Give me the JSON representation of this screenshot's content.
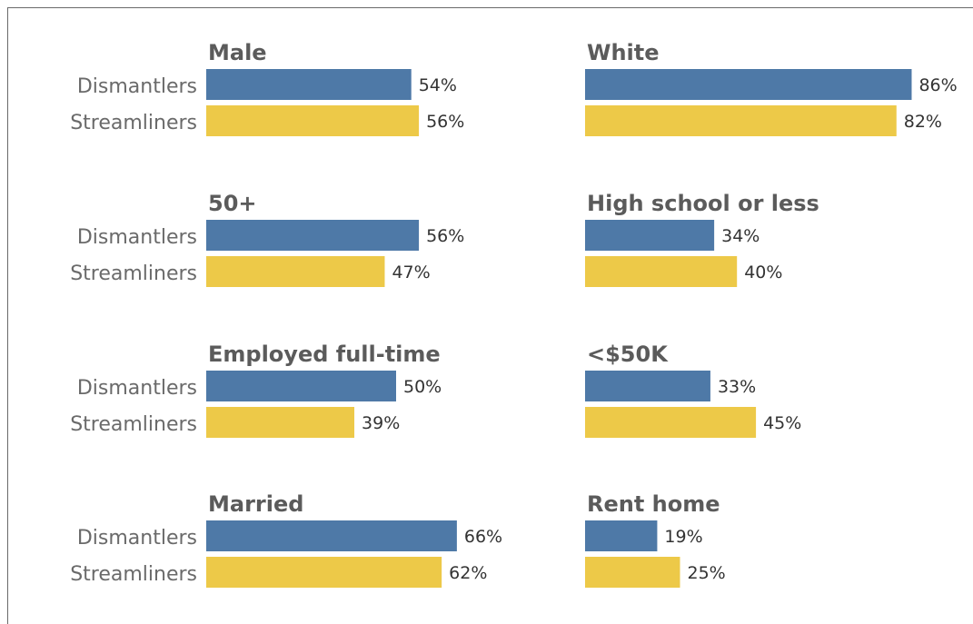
{
  "chart_data": {
    "type": "bar",
    "orientation": "horizontal",
    "series_names": [
      "Dismantlers",
      "Streamliners"
    ],
    "colors": {
      "Dismantlers": "#4e79a7",
      "Streamliners": "#edc948"
    },
    "value_format": "percent",
    "panels": [
      {
        "title": "Male",
        "values": [
          54,
          56
        ]
      },
      {
        "title": "White",
        "values": [
          86,
          82
        ]
      },
      {
        "title": "50+",
        "values": [
          56,
          47
        ]
      },
      {
        "title": "High school or less",
        "values": [
          34,
          40
        ]
      },
      {
        "title": "Employed full-time",
        "values": [
          50,
          39
        ]
      },
      {
        "title": "<$50K",
        "values": [
          33,
          45
        ]
      },
      {
        "title": "Married",
        "values": [
          66,
          62
        ]
      },
      {
        "title": "Rent home",
        "values": [
          19,
          25
        ]
      }
    ]
  }
}
